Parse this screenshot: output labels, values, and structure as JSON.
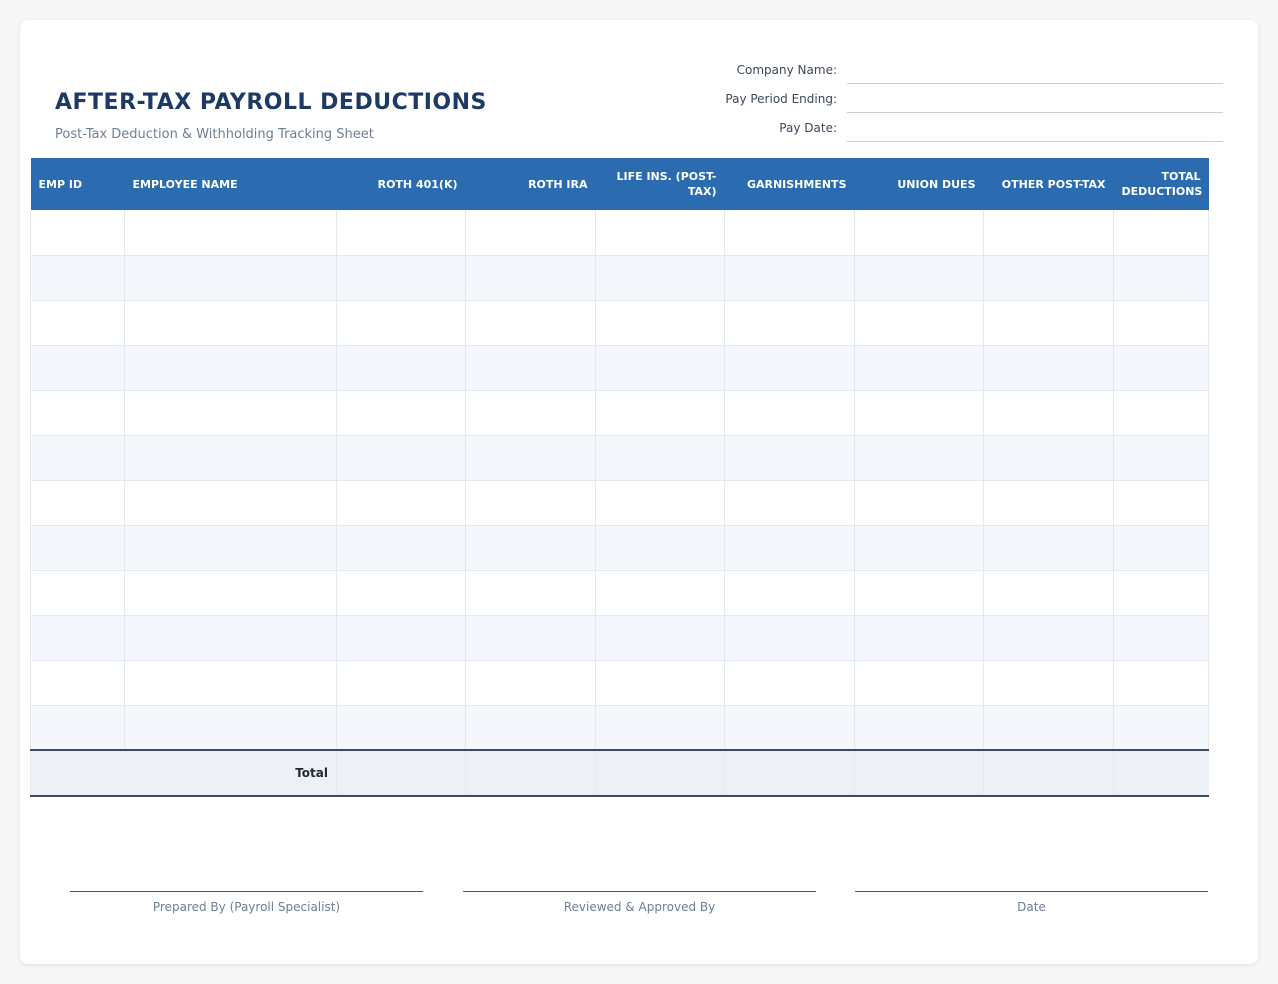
{
  "header": {
    "title": "AFTER-TAX PAYROLL DEDUCTIONS",
    "subtitle": "Post-Tax Deduction & Withholding Tracking Sheet"
  },
  "meta": {
    "company_name_label": "Company Name:",
    "pay_period_label": "Pay Period Ending:",
    "pay_date_label": "Pay Date:"
  },
  "table": {
    "columns": [
      "EMP ID",
      "EMPLOYEE NAME",
      "ROTH 401(K)",
      "ROTH IRA",
      "LIFE INS. (POST-TAX)",
      "GARNISHMENTS",
      "UNION DUES",
      "OTHER POST-TAX",
      "TOTAL DEDUCTIONS"
    ],
    "total_label": "Total"
  },
  "signatures": {
    "prepared": "Prepared By (Payroll Specialist)",
    "reviewed": "Reviewed & Approved By",
    "date": "Date"
  },
  "colors": {
    "header_bg": "#2b6cb0",
    "title": "#1c3a63"
  }
}
